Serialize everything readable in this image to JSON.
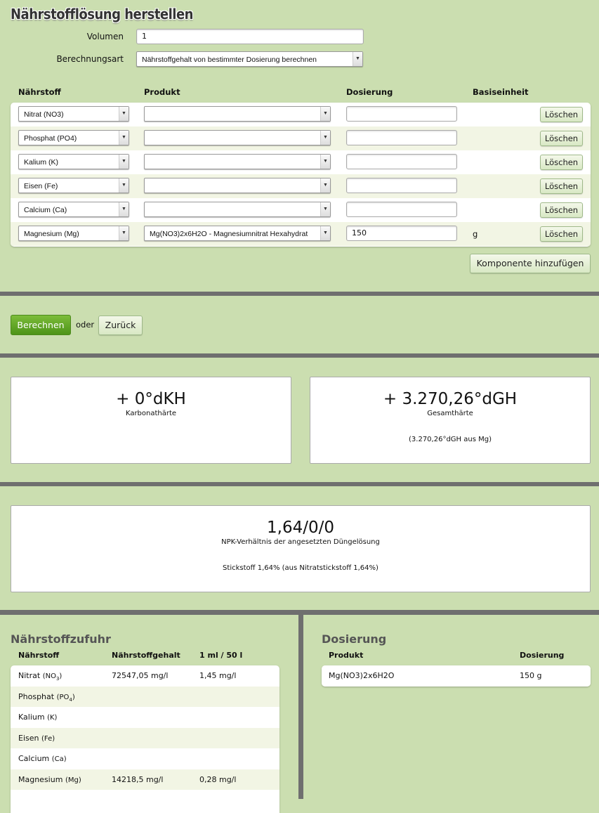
{
  "title": "Nährstofflösung herstellen",
  "form": {
    "volume_label": "Volumen",
    "volume_value": "1",
    "mode_label": "Berechnungsart",
    "mode_value": "Nährstoffgehalt von bestimmter Dosierung berechnen"
  },
  "components": {
    "headers": [
      "Nährstoff",
      "Produkt",
      "Dosierung",
      "Basiseinheit"
    ],
    "rows": [
      {
        "nutrient": "Nitrat (NO3)",
        "product": "",
        "dose": "",
        "unit": "",
        "delete": "Löschen"
      },
      {
        "nutrient": "Phosphat (PO4)",
        "product": "",
        "dose": "",
        "unit": "",
        "delete": "Löschen"
      },
      {
        "nutrient": "Kalium (K)",
        "product": "",
        "dose": "",
        "unit": "",
        "delete": "Löschen"
      },
      {
        "nutrient": "Eisen (Fe)",
        "product": "",
        "dose": "",
        "unit": "",
        "delete": "Löschen"
      },
      {
        "nutrient": "Calcium (Ca)",
        "product": "",
        "dose": "",
        "unit": "",
        "delete": "Löschen"
      },
      {
        "nutrient": "Magnesium (Mg)",
        "product": "Mg(NO3)2x6H2O - Magnesiumnitrat Hexahydrat",
        "dose": "150",
        "unit": "g",
        "delete": "Löschen"
      }
    ],
    "add_label": "Komponente hinzufügen"
  },
  "actions": {
    "calculate": "Berechnen",
    "or": "oder",
    "back": "Zurück"
  },
  "hardness": {
    "kh_value": "+ 0°dKH",
    "kh_label": "Karbonathärte",
    "gh_value": "+ 3.270,26°dGH",
    "gh_label": "Gesamthärte",
    "gh_detail": "(3.270,26°dGH aus Mg)"
  },
  "npk": {
    "value": "1,64/0/0",
    "label": "NPK-Verhältnis der angesetzten Düngelösung",
    "detail": "Stickstoff 1,64% (aus Nitratstickstoff 1,64%)"
  },
  "supply": {
    "title": "Nährstoffzufuhr",
    "headers": [
      "Nährstoff",
      "Nährstoffgehalt",
      "1 ml / 50 l"
    ],
    "rows": [
      {
        "name": "Nitrat",
        "formula": "(NO",
        "sub": "3",
        "close": ")",
        "content": "72547,05 mg/l",
        "per": "1,45 mg/l"
      },
      {
        "name": "Phosphat",
        "formula": "(PO",
        "sub": "4",
        "close": ")",
        "content": "",
        "per": ""
      },
      {
        "name": "Kalium",
        "formula": "(K)",
        "sub": "",
        "close": "",
        "content": "",
        "per": ""
      },
      {
        "name": "Eisen",
        "formula": "(Fe)",
        "sub": "",
        "close": "",
        "content": "",
        "per": ""
      },
      {
        "name": "Calcium",
        "formula": "(Ca)",
        "sub": "",
        "close": "",
        "content": "",
        "per": ""
      },
      {
        "name": "Magnesium",
        "formula": "(Mg)",
        "sub": "",
        "close": "",
        "content": "14218,5 mg/l",
        "per": "0,28 mg/l"
      },
      {
        "name": "",
        "formula": "",
        "sub": "",
        "close": "",
        "content": "",
        "per": ""
      }
    ]
  },
  "dosage": {
    "title": "Dosierung",
    "headers": [
      "Produkt",
      "Dosierung"
    ],
    "rows": [
      {
        "product": "Mg(NO3)2x6H2O",
        "dose": "150 g"
      }
    ]
  }
}
